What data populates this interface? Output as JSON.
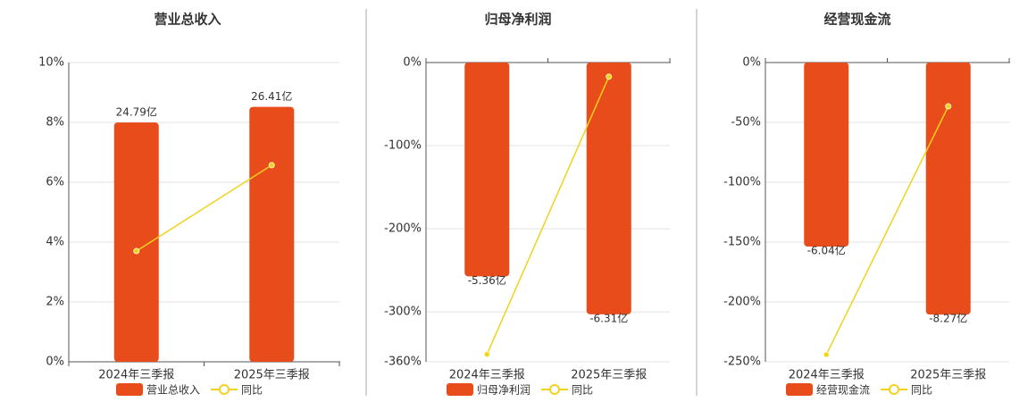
{
  "chart_data": [
    {
      "type": "bar",
      "title": "营业总收入",
      "categories": [
        "2024年三季报",
        "2025年三季报"
      ],
      "ylim": [
        0,
        10
      ],
      "yticks": [
        {
          "value": 0,
          "label": "0%"
        },
        {
          "value": 2,
          "label": "2%"
        },
        {
          "value": 4,
          "label": "4%"
        },
        {
          "value": 6,
          "label": "6%"
        },
        {
          "value": 8,
          "label": "8%"
        },
        {
          "value": 10,
          "label": "10%"
        }
      ],
      "y2lim": [
        0,
        31
      ],
      "grid": true,
      "series": [
        {
          "name": "营业总收入",
          "type": "bar",
          "color": "#e84c1a",
          "axis": "y2",
          "values": [
            24.79,
            26.41
          ],
          "value_labels": [
            "24.79亿",
            "26.41亿"
          ]
        },
        {
          "name": "同比",
          "type": "line",
          "color": "#f2d21b",
          "values": [
            3.7,
            6.57
          ]
        }
      ]
    },
    {
      "type": "bar",
      "title": "归母净利润",
      "categories": [
        "2024年三季报",
        "2025年三季报"
      ],
      "ylim": [
        -360,
        0
      ],
      "yticks": [
        {
          "value": 0,
          "label": "0%"
        },
        {
          "value": -100,
          "label": "-100%"
        },
        {
          "value": -200,
          "label": "-200%"
        },
        {
          "value": -300,
          "label": "-300%"
        },
        {
          "value": -360,
          "label": "-360%"
        }
      ],
      "y2lim": [
        -7.5,
        0
      ],
      "grid": true,
      "series": [
        {
          "name": "归母净利润",
          "type": "bar",
          "color": "#e84c1a",
          "axis": "y2",
          "values": [
            -5.36,
            -6.31
          ],
          "value_labels": [
            "-5.36亿",
            "-6.31亿"
          ]
        },
        {
          "name": "同比",
          "type": "line",
          "color": "#f2d21b",
          "values": [
            -351,
            -17
          ]
        }
      ]
    },
    {
      "type": "bar",
      "title": "经营现金流",
      "categories": [
        "2024年三季报",
        "2025年三季报"
      ],
      "ylim": [
        -250,
        0
      ],
      "yticks": [
        {
          "value": 0,
          "label": "0%"
        },
        {
          "value": -50,
          "label": "-50%"
        },
        {
          "value": -100,
          "label": "-100%"
        },
        {
          "value": -150,
          "label": "-150%"
        },
        {
          "value": -200,
          "label": "-200%"
        },
        {
          "value": -250,
          "label": "-250%"
        }
      ],
      "y2lim": [
        -9.82,
        0
      ],
      "grid": true,
      "series": [
        {
          "name": "经营现金流",
          "type": "bar",
          "color": "#e84c1a",
          "axis": "y2",
          "values": [
            -6.04,
            -8.27
          ],
          "value_labels": [
            "-6.04亿",
            "-8.27亿"
          ]
        },
        {
          "name": "同比",
          "type": "line",
          "color": "#f2d21b",
          "values": [
            -244,
            -36.6
          ]
        }
      ]
    }
  ]
}
